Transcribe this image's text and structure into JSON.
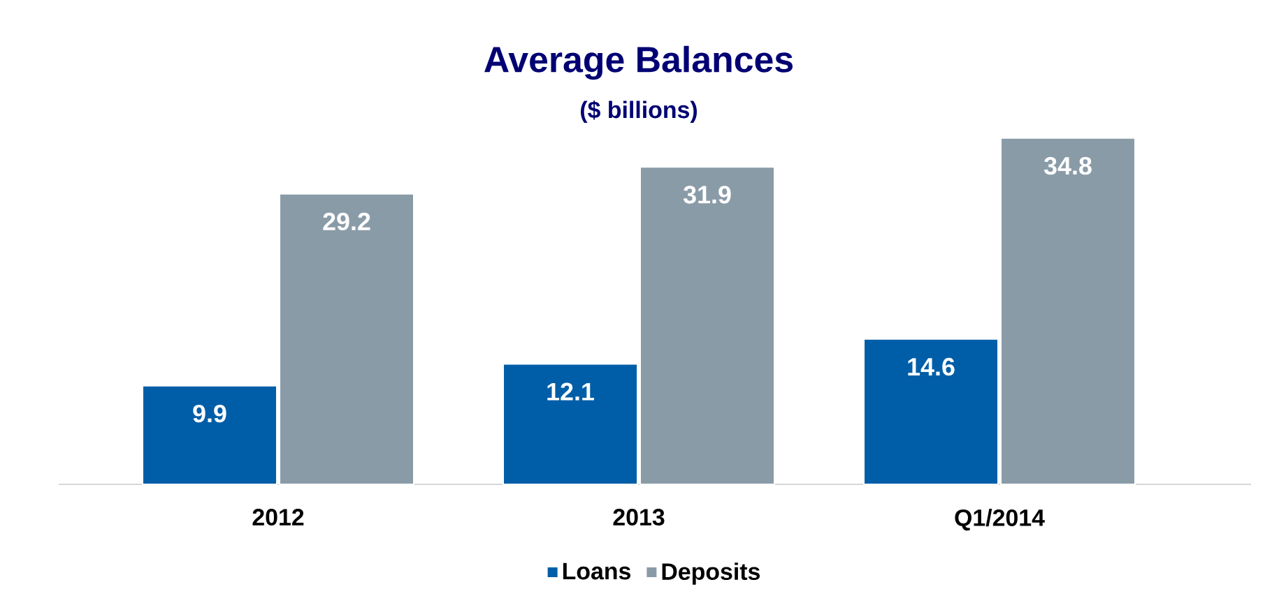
{
  "chart_data": {
    "type": "bar",
    "title": "Average Balances",
    "subtitle": "($ billions)",
    "categories": [
      "2012",
      "2013",
      "Q1/2014"
    ],
    "series": [
      {
        "name": "Loans",
        "color": "#005ea8",
        "values": [
          9.9,
          12.1,
          14.6
        ]
      },
      {
        "name": "Deposits",
        "color": "#8a9ba8",
        "values": [
          29.2,
          31.9,
          34.8
        ]
      }
    ],
    "data_labels": true,
    "legend": "bottom"
  }
}
